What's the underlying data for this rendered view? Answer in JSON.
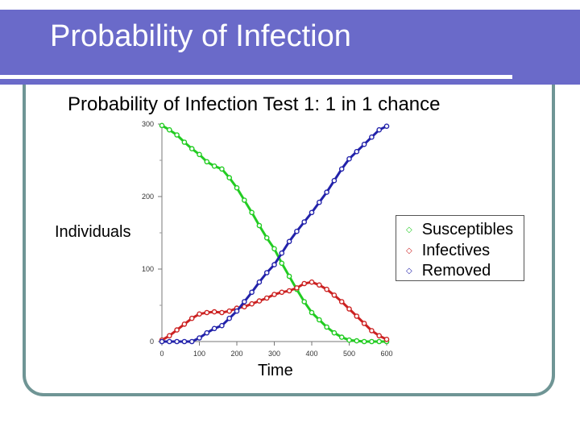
{
  "slide": {
    "title": "Probability of Infection",
    "colors": {
      "header": "#6a6ac9",
      "frame": "#6f9595"
    }
  },
  "chart_data": {
    "type": "scatter",
    "title": "Probability of Infection Test 1:  1 in 1 chance",
    "xlabel": "Time",
    "ylabel": "Individuals",
    "xlim": [
      0,
      600
    ],
    "ylim": [
      0,
      300
    ],
    "xticks": [
      "0",
      "100",
      "200",
      "300",
      "400",
      "500",
      "600"
    ],
    "yticks": [
      "0",
      "100",
      "200",
      "300"
    ],
    "legend_position": "right",
    "series": [
      {
        "name": "Susceptibles",
        "color": "#22cc22",
        "x": [
          0,
          20,
          40,
          60,
          80,
          100,
          120,
          140,
          160,
          180,
          200,
          220,
          240,
          260,
          280,
          300,
          320,
          340,
          360,
          380,
          400,
          420,
          440,
          460,
          480,
          500,
          520,
          540,
          560,
          580,
          600
        ],
        "y": [
          298,
          292,
          285,
          275,
          266,
          258,
          248,
          242,
          238,
          226,
          212,
          195,
          178,
          160,
          143,
          128,
          108,
          90,
          72,
          55,
          40,
          30,
          20,
          12,
          6,
          2,
          1,
          0,
          0,
          0,
          0
        ]
      },
      {
        "name": "Infectives",
        "color": "#cc2222",
        "x": [
          0,
          20,
          40,
          60,
          80,
          100,
          120,
          140,
          160,
          180,
          200,
          220,
          240,
          260,
          280,
          300,
          320,
          340,
          360,
          380,
          400,
          420,
          440,
          460,
          480,
          500,
          520,
          540,
          560,
          580,
          600
        ],
        "y": [
          2,
          8,
          16,
          24,
          32,
          38,
          40,
          41,
          40,
          42,
          46,
          48,
          52,
          56,
          60,
          65,
          68,
          70,
          74,
          80,
          82,
          78,
          72,
          64,
          55,
          45,
          35,
          25,
          15,
          8,
          3
        ]
      },
      {
        "name": "Removed",
        "color": "#2222aa",
        "x": [
          0,
          20,
          40,
          60,
          80,
          100,
          120,
          140,
          160,
          180,
          200,
          220,
          240,
          260,
          280,
          300,
          320,
          340,
          360,
          380,
          400,
          420,
          440,
          460,
          480,
          500,
          520,
          540,
          560,
          580,
          600
        ],
        "y": [
          0,
          0,
          0,
          0,
          0,
          5,
          12,
          18,
          22,
          32,
          42,
          55,
          68,
          82,
          95,
          106,
          122,
          138,
          152,
          165,
          178,
          192,
          206,
          222,
          238,
          252,
          262,
          272,
          282,
          292,
          297
        ]
      }
    ]
  }
}
